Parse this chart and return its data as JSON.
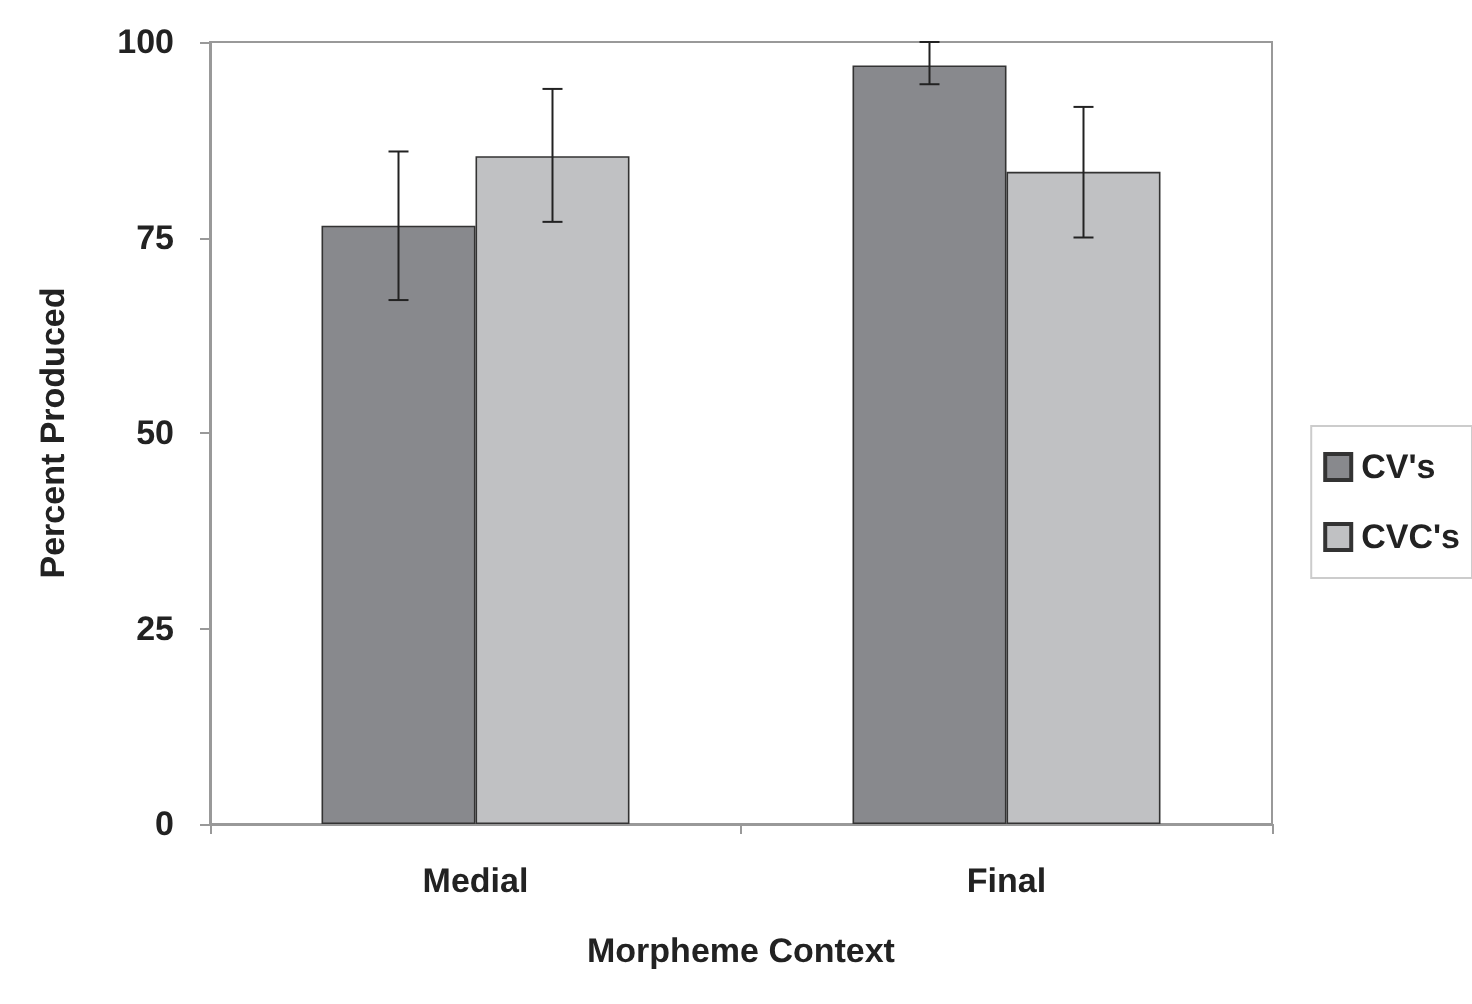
{
  "chart_data": {
    "type": "bar",
    "xlabel": "Morpheme Context",
    "ylabel": "Percent Produced",
    "categories": [
      "Medial",
      "Final"
    ],
    "series": [
      {
        "name": "CV's",
        "color": "#88898d",
        "values": [
          76.5,
          97
        ],
        "errors": [
          [
            67,
            86
          ],
          [
            94.6,
            100
          ]
        ]
      },
      {
        "name": "CVC's",
        "color": "#c0c1c3",
        "values": [
          85.4,
          83.4
        ],
        "errors": [
          [
            77,
            94
          ],
          [
            75,
            91.7
          ]
        ]
      }
    ],
    "ylim": [
      0,
      100
    ],
    "yticks": [
      0,
      25,
      50,
      75,
      100
    ],
    "grid": false,
    "legend": "right"
  }
}
